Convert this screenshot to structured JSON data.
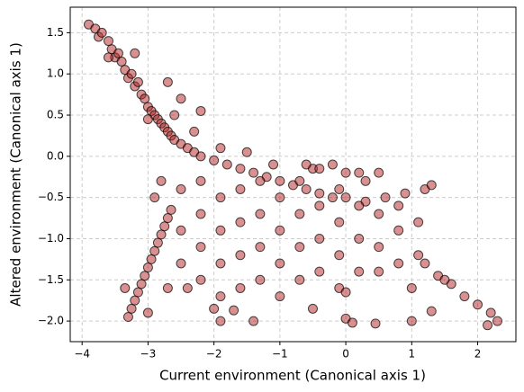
{
  "chart_data": {
    "type": "scatter",
    "xlabel": "Current environment (Canonical axis 1)",
    "ylabel": "Altered environment (Canonical axis 1)",
    "color": "#b22222",
    "edgecolor": "#000000",
    "alpha": 0.5,
    "grid": true,
    "xlim": [
      -4.18,
      2.58
    ],
    "ylim": [
      -2.25,
      1.81
    ],
    "xticks": [
      -4,
      -3,
      -2,
      -1,
      0,
      1,
      2
    ],
    "yticks": [
      {
        "value": -2,
        "label": "−2.0"
      },
      {
        "value": -1.5,
        "label": "−1.5"
      },
      {
        "value": -1,
        "label": "−1.0"
      },
      {
        "value": -0.5,
        "label": "−0.5"
      },
      {
        "value": 0,
        "label": "0.0"
      },
      {
        "value": 0.5,
        "label": "0.5"
      },
      {
        "value": 1,
        "label": "1.0"
      },
      {
        "value": 1.5,
        "label": "1.5"
      }
    ],
    "xtick_labels": [
      "−4",
      "−3",
      "−2",
      "−1",
      "0",
      "1",
      "2"
    ],
    "x": [
      -3.9,
      -3.8,
      -3.75,
      -3.7,
      -3.6,
      -3.55,
      -3.5,
      -3.45,
      -3.4,
      -3.35,
      -3.3,
      -3.25,
      -3.2,
      -3.15,
      -3.1,
      -3.05,
      -3.0,
      -2.95,
      -2.9,
      -2.85,
      -2.8,
      -2.75,
      -2.7,
      -2.65,
      -2.6,
      -2.5,
      -2.4,
      -2.3,
      -2.2,
      -2.0,
      -1.8,
      -1.6,
      -1.4,
      -1.2,
      -1.0,
      -0.8,
      -0.6,
      -0.4,
      -0.2,
      0,
      0.3,
      0.6,
      0.9,
      1.2,
      1.3,
      -3.6,
      -3.2,
      -2.5,
      -2.2,
      -2.7,
      -3.0,
      -2.6,
      -2.3,
      -1.9,
      -1.5,
      -1.1,
      -0.5,
      0.2,
      0.3,
      0.5,
      -0.6,
      -3.3,
      -3.25,
      -3.2,
      -3.15,
      -3.1,
      -3.05,
      -3.0,
      -2.95,
      -2.9,
      -2.85,
      -2.8,
      -2.75,
      -2.7,
      -2.65,
      -3.35,
      -3.0,
      -2.5,
      -2.5,
      -2.5,
      -2.2,
      -2.2,
      -2.2,
      -2.2,
      -1.9,
      -1.9,
      -1.9,
      -1.9,
      -1.6,
      -1.6,
      -1.6,
      -1.6,
      -1.3,
      -1.3,
      -1.3,
      -1.3,
      -1.0,
      -1.0,
      -1.0,
      -1.0,
      -0.7,
      -0.7,
      -0.7,
      -0.7,
      -0.4,
      -0.4,
      -0.4,
      -0.1,
      -0.1,
      -0.1,
      -0.1,
      0.2,
      0.2,
      0.2,
      0.5,
      0.5,
      0.5,
      0.8,
      0.8,
      0.8,
      1.1,
      1.1,
      1.2,
      1.4,
      1.6,
      1.8,
      2.0,
      2.2,
      2.3,
      2.15,
      1.5,
      -1.9,
      -1.4,
      -0.5,
      0,
      0.1,
      0.45,
      1.0,
      1.3,
      -1.7,
      -2.0,
      1.0,
      0,
      -0.2,
      -0.4,
      0.0,
      -2.9,
      -2.8,
      -2.7,
      -2.4
    ],
    "y": [
      1.6,
      1.55,
      1.45,
      1.5,
      1.4,
      1.3,
      1.2,
      1.25,
      1.15,
      1.05,
      0.95,
      1.0,
      0.85,
      0.9,
      0.75,
      0.7,
      0.6,
      0.55,
      0.5,
      0.45,
      0.4,
      0.35,
      0.3,
      0.25,
      0.2,
      0.15,
      0.1,
      0.05,
      0.0,
      -0.05,
      -0.1,
      -0.15,
      -0.2,
      -0.25,
      -0.3,
      -0.35,
      -0.4,
      -0.45,
      -0.5,
      -0.5,
      -0.55,
      -0.5,
      -0.45,
      -0.4,
      -0.35,
      1.2,
      1.25,
      0.7,
      0.55,
      0.9,
      0.45,
      0.5,
      0.3,
      0.1,
      0.05,
      -0.1,
      -0.15,
      -0.2,
      -0.3,
      -0.2,
      -0.1,
      -1.95,
      -1.85,
      -1.75,
      -1.65,
      -1.55,
      -1.45,
      -1.35,
      -1.25,
      -1.15,
      -1.05,
      -0.95,
      -0.85,
      -0.75,
      -0.65,
      -1.6,
      -1.9,
      -0.4,
      -0.9,
      -1.3,
      -0.3,
      -0.7,
      -1.1,
      -1.5,
      -0.5,
      -0.9,
      -1.3,
      -1.7,
      -0.4,
      -0.8,
      -1.2,
      -1.6,
      -0.3,
      -0.7,
      -1.1,
      -1.5,
      -0.5,
      -0.9,
      -1.3,
      -1.7,
      -0.3,
      -0.7,
      -1.1,
      -1.5,
      -0.6,
      -1.0,
      -1.4,
      -0.4,
      -0.8,
      -1.2,
      -1.6,
      -0.6,
      -1.0,
      -1.4,
      -0.7,
      -1.1,
      -1.4,
      -0.6,
      -0.9,
      -1.3,
      -0.8,
      -1.2,
      -1.3,
      -1.45,
      -1.55,
      -1.7,
      -1.8,
      -1.9,
      -2.0,
      -2.05,
      -1.5,
      -2.0,
      -2.0,
      -1.85,
      -1.97,
      -2.02,
      -2.03,
      -2.0,
      -1.88,
      -1.87,
      -1.85,
      -1.6,
      -1.65,
      -0.1,
      -0.15,
      -0.2,
      -0.5,
      -0.3,
      -1.6,
      -1.6
    ]
  }
}
